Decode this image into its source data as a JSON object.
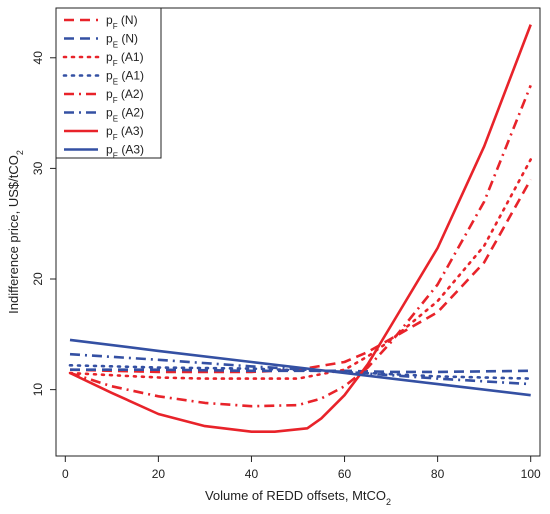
{
  "chart_data": {
    "type": "line",
    "xlabel": "Volume of REDD offsets, MtCO",
    "xlabel_sub": "2",
    "ylabel": "Indifference price, US$/tCO",
    "ylabel_sub": "2",
    "xlim": [
      -2,
      102
    ],
    "ylim": [
      4,
      44.5
    ],
    "xticks": [
      0,
      20,
      40,
      60,
      80,
      100
    ],
    "yticks": [
      10,
      20,
      30,
      40
    ],
    "legend_position": "top-left",
    "grid": false,
    "colors": {
      "red": "#e8232a",
      "blue": "#3450a3"
    },
    "series": [
      {
        "name": "p",
        "sub": "F",
        "suffix": " (N)",
        "color": "#e8232a",
        "style": "dashed",
        "x": [
          1,
          10,
          20,
          30,
          40,
          50,
          60,
          65,
          70,
          80,
          90,
          100
        ],
        "y": [
          11.8,
          11.7,
          11.6,
          11.6,
          11.6,
          11.8,
          12.5,
          13.4,
          14.6,
          17.0,
          21.5,
          29.0
        ]
      },
      {
        "name": "p",
        "sub": "E",
        "suffix": " (N)",
        "color": "#3450a3",
        "style": "dashed",
        "x": [
          1,
          20,
          40,
          60,
          70,
          80,
          100
        ],
        "y": [
          11.8,
          11.8,
          11.7,
          11.7,
          11.6,
          11.6,
          11.7
        ]
      },
      {
        "name": "p",
        "sub": "F",
        "suffix": " (A1)",
        "color": "#e8232a",
        "style": "dotted",
        "x": [
          1,
          10,
          20,
          30,
          40,
          50,
          60,
          65,
          70,
          80,
          90,
          100
        ],
        "y": [
          11.5,
          11.3,
          11.1,
          11.0,
          11.0,
          11.0,
          11.8,
          13.0,
          14.5,
          18.0,
          23.0,
          30.8
        ]
      },
      {
        "name": "p",
        "sub": "E",
        "suffix": " (A1)",
        "color": "#3450a3",
        "style": "dotted",
        "x": [
          1,
          20,
          40,
          60,
          80,
          100
        ],
        "y": [
          12.2,
          12.0,
          11.9,
          11.6,
          11.2,
          11.0
        ]
      },
      {
        "name": "p",
        "sub": "F",
        "suffix": " (A2)",
        "color": "#e8232a",
        "style": "dashdot",
        "x": [
          1,
          10,
          20,
          30,
          40,
          50,
          55,
          60,
          65,
          70,
          80,
          90,
          100
        ],
        "y": [
          11.5,
          10.3,
          9.4,
          8.8,
          8.5,
          8.6,
          9.2,
          10.3,
          12.0,
          14.3,
          19.5,
          27.0,
          37.5
        ]
      },
      {
        "name": "p",
        "sub": "E",
        "suffix": " (A2)",
        "color": "#3450a3",
        "style": "dashdot",
        "x": [
          1,
          20,
          40,
          60,
          80,
          100
        ],
        "y": [
          13.2,
          12.7,
          12.1,
          11.6,
          11.0,
          10.5
        ]
      },
      {
        "name": "p",
        "sub": "F",
        "suffix": " (A3)",
        "color": "#e8232a",
        "style": "solid",
        "x": [
          1,
          10,
          20,
          30,
          40,
          45,
          52,
          55,
          60,
          65,
          70,
          80,
          90,
          100
        ],
        "y": [
          11.5,
          9.7,
          7.8,
          6.7,
          6.2,
          6.2,
          6.5,
          7.4,
          9.5,
          12.3,
          15.8,
          22.8,
          32.0,
          43.0
        ]
      },
      {
        "name": "p",
        "sub": "E",
        "suffix": " (A3)",
        "color": "#3450a3",
        "style": "solid",
        "x": [
          1,
          20,
          40,
          60,
          80,
          100
        ],
        "y": [
          14.5,
          13.5,
          12.5,
          11.5,
          10.5,
          9.5
        ]
      }
    ]
  }
}
